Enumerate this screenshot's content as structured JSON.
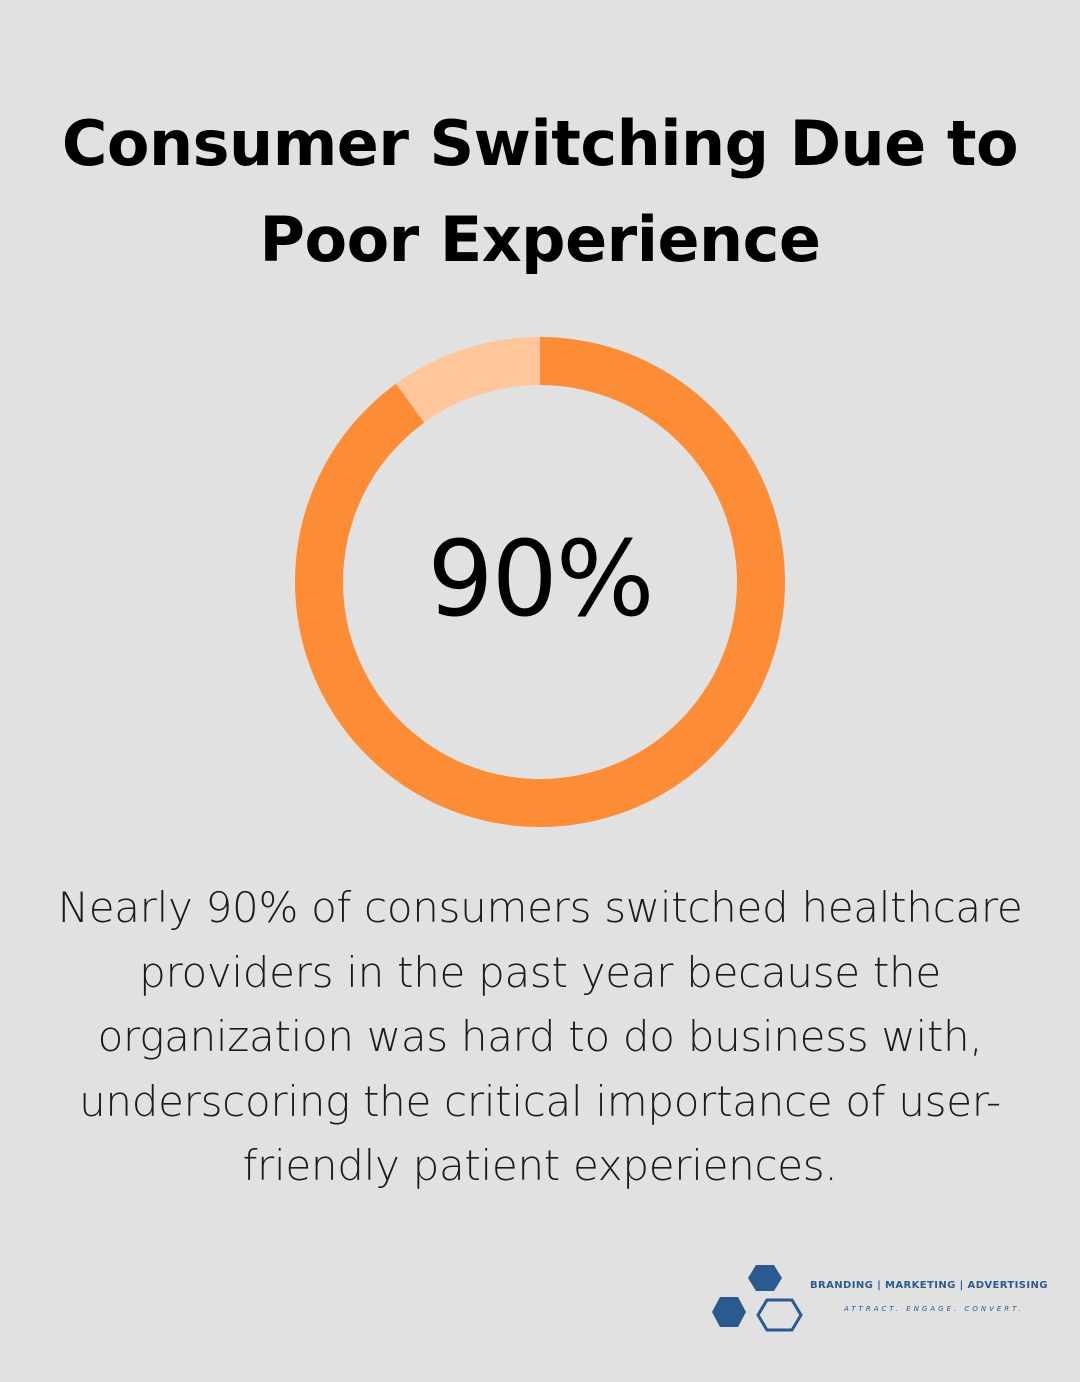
{
  "title": {
    "line1": "Consumer Switching Due to",
    "line2": "Poor Experience"
  },
  "chart_data": {
    "type": "pie",
    "variant": "donut",
    "value_label": "90%",
    "slices": [
      {
        "value": 90,
        "color": "#fd8c37"
      },
      {
        "value": 10,
        "color": "#ffc69c"
      }
    ]
  },
  "description": {
    "line1": "Nearly 90% of consumers switched healthcare",
    "line2": "providers in the past year because the",
    "line3": "organization was hard to do business with,",
    "line4": "underscoring the critical importance of user-",
    "line5": "friendly patient experiences."
  },
  "logo": {
    "tagline1": "BRANDING | MARKETING | ADVERTISING",
    "tagline2": "ATTRACT. ENGAGE. CONVERT.",
    "icon": "hexagon-cluster-icon",
    "color": "#2a5a8f"
  },
  "colors": {
    "background": "#e0e1e0",
    "accent": "#fd8c37",
    "accent_light": "#ffc69c"
  }
}
